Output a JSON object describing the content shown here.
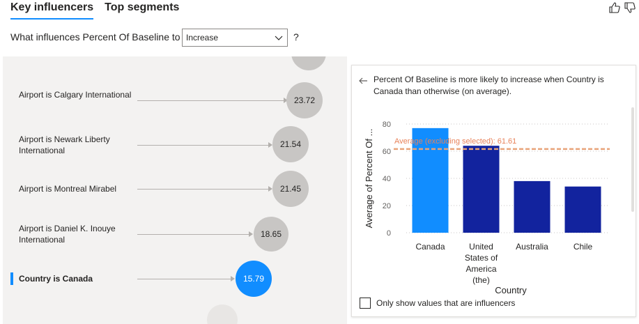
{
  "tabs": [
    {
      "label": "Key influencers",
      "active": true
    },
    {
      "label": "Top segments",
      "active": false
    }
  ],
  "question": {
    "prefix": "What influences Percent Of Baseline to",
    "selected": "Increase",
    "help": "?"
  },
  "influencers": [
    {
      "label": "Airport is Calgary International",
      "value": "23.72",
      "selected": false
    },
    {
      "label": "Airport is Newark Liberty International",
      "value": "21.54",
      "selected": false
    },
    {
      "label": "Airport is Montreal Mirabel",
      "value": "21.45",
      "selected": false
    },
    {
      "label": "Airport is Daniel K. Inouye International",
      "value": "18.65",
      "selected": false
    },
    {
      "label": "Country is Canada",
      "value": "15.79",
      "selected": true
    }
  ],
  "detail": {
    "explanation": "Percent Of Baseline is more likely to increase when Country is Canada than otherwise (on average).",
    "checkbox_label": "Only show values that are influencers"
  },
  "colors": {
    "accent": "#118dff",
    "bar_selected": "#118dff",
    "bar_other": "#12239e",
    "average_line": "#e8a37a",
    "bubble_default": "#c8c6c4"
  },
  "chart_data": {
    "type": "bar",
    "categories": [
      "Canada",
      "United States of America (the)",
      "Australia",
      "Chile"
    ],
    "category_lines": [
      [
        "Canada"
      ],
      [
        "United",
        "States of",
        "America",
        "(the)"
      ],
      [
        "Australia"
      ],
      [
        "Chile"
      ]
    ],
    "values": [
      77,
      64,
      38,
      34
    ],
    "highlight": [
      true,
      false,
      false,
      false
    ],
    "xlabel": "Country",
    "ylabel": "Average of Percent Of ...",
    "ylim": [
      0,
      80
    ],
    "yticks": [
      0,
      20,
      40,
      60,
      80
    ],
    "average_value": 61.61,
    "average_label": "Average (excluding selected): 61.61",
    "grid": true
  }
}
